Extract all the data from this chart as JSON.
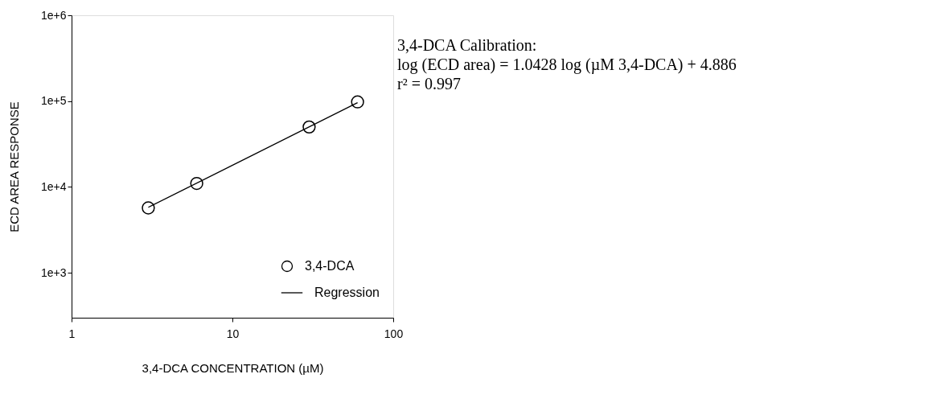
{
  "chart_data": {
    "type": "scatter",
    "xlabel": "3,4-DCA CONCENTRATION (µM)",
    "ylabel": "ECD AREA RESPONSE",
    "log": "xy",
    "xlim": [
      1,
      100
    ],
    "xticks": [
      1,
      10,
      100
    ],
    "ylim": [
      300,
      1000000
    ],
    "yticks": [
      {
        "value": 1000,
        "label": "1e+3"
      },
      {
        "value": 10000,
        "label": "1e+4"
      },
      {
        "value": 100000,
        "label": "1e+5"
      },
      {
        "value": 1000000,
        "label": "1e+6"
      }
    ],
    "x": [
      3,
      6,
      30,
      60
    ],
    "series": [
      {
        "name": "3,4-DCA",
        "type": "scatter",
        "color": "#000000",
        "marker": "circle",
        "values": [
          5700,
          11000,
          50000,
          98000
        ]
      },
      {
        "name": "Regression",
        "type": "line",
        "color": "#000000",
        "line_style": "solid",
        "x": [
          3,
          60
        ],
        "values": [
          5800,
          96000
        ]
      }
    ],
    "legend": "bottom right",
    "grid": false,
    "annotations": [
      "3,4-DCA Calibration:",
      "log (ECD area) = 1.0428 log (µM 3,4-DCA) + 4.886",
      "r² = 0.997"
    ]
  }
}
